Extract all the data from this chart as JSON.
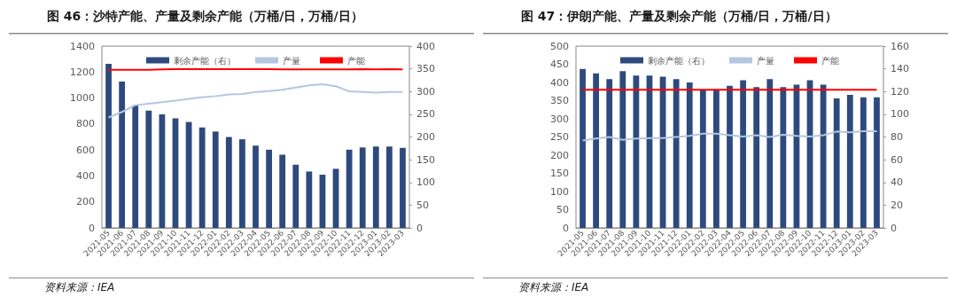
{
  "chart_data": [
    {
      "type": "bar",
      "title": "图 46：沙特产能、产量及剩余产能（万桶/日，万桶/日）",
      "annotations": [
        "资料来源：IEA"
      ],
      "categories": [
        "2021-05",
        "2021-06",
        "2021-07",
        "2021-08",
        "2021-09",
        "2021-10",
        "2021-11",
        "2021-12",
        "2022-01",
        "2022-02",
        "2022-03",
        "2022-04",
        "2022-05",
        "2022-06",
        "2022-07",
        "2022-08",
        "2022-09",
        "2022-10",
        "2022-11",
        "2022-12",
        "2023-01",
        "2023-02",
        "2023-03"
      ],
      "series": [
        {
          "name": "剩余产能（右）",
          "axis": "y2",
          "color": "#2e4a7d",
          "values": [
            361,
            322,
            270,
            258,
            250,
            241,
            233,
            221,
            212,
            200,
            195,
            181,
            172,
            161,
            139,
            124,
            117,
            130,
            172,
            177,
            179,
            179,
            176
          ]
        },
        {
          "name": "产量",
          "type": "line",
          "color": "#b4c6e0",
          "values": [
            850,
            893,
            945,
            956,
            968,
            980,
            994,
            1006,
            1015,
            1027,
            1032,
            1046,
            1053,
            1063,
            1081,
            1098,
            1107,
            1091,
            1051,
            1046,
            1041,
            1046,
            1046
          ]
        },
        {
          "name": "产能",
          "type": "line",
          "color": "#ff0000",
          "values": [
            1218,
            1218,
            1218,
            1218,
            1220,
            1222,
            1222,
            1222,
            1222,
            1222,
            1222,
            1222,
            1222,
            1220,
            1220,
            1220,
            1220,
            1220,
            1220,
            1222,
            1220,
            1222,
            1220
          ]
        }
      ],
      "ylim": [
        0,
        1400
      ],
      "yticks": [
        0,
        200,
        400,
        600,
        800,
        1000,
        1200,
        1400
      ],
      "y2lim": [
        0,
        400
      ],
      "y2ticks": [
        0,
        50,
        100,
        150,
        200,
        250,
        300,
        350,
        400
      ],
      "grid": false,
      "legend": "top",
      "marker": "none"
    },
    {
      "type": "bar",
      "title": "图 47：伊朗产能、产量及剩余产能（万桶/日，万桶/日）",
      "annotations": [
        "资料来源：IEA"
      ],
      "categories": [
        "2021-05",
        "2021-06",
        "2021-07",
        "2021-08",
        "2021-09",
        "2021-10",
        "2021-11",
        "2021-12",
        "2022-01",
        "2022-02",
        "2022-03",
        "2022-04",
        "2022-05",
        "2022-06",
        "2022-07",
        "2022-08",
        "2022-09",
        "2022-10",
        "2022-11",
        "2022-12",
        "2023-01",
        "2023-02",
        "2023-03"
      ],
      "series": [
        {
          "name": "剩余产能（右）",
          "axis": "y2",
          "color": "#2e4a7d",
          "values": [
            140,
            136,
            131,
            138,
            134,
            134,
            133,
            131,
            128,
            122,
            122,
            125,
            130,
            124,
            131,
            124,
            126,
            130,
            126,
            114,
            117,
            115,
            115
          ]
        },
        {
          "name": "产量",
          "type": "line",
          "color": "#b4c6e0",
          "values": [
            240,
            246,
            250,
            242,
            246,
            247,
            247,
            250,
            253,
            259,
            259,
            255,
            251,
            255,
            250,
            256,
            253,
            251,
            255,
            265,
            263,
            266,
            266
          ]
        },
        {
          "name": "产能",
          "type": "line",
          "color": "#ff0000",
          "values": [
            380,
            380,
            380,
            380,
            380,
            380,
            380,
            380,
            380,
            380,
            380,
            380,
            380,
            380,
            380,
            380,
            380,
            380,
            380,
            380,
            380,
            380,
            380
          ]
        }
      ],
      "ylim": [
        0,
        500
      ],
      "yticks": [
        0,
        50,
        100,
        150,
        200,
        250,
        300,
        350,
        400,
        450,
        500
      ],
      "y2lim": [
        0,
        160
      ],
      "y2ticks": [
        0,
        20,
        40,
        60,
        80,
        100,
        120,
        140,
        160
      ],
      "grid": false,
      "legend": "top",
      "marker": "none"
    }
  ]
}
